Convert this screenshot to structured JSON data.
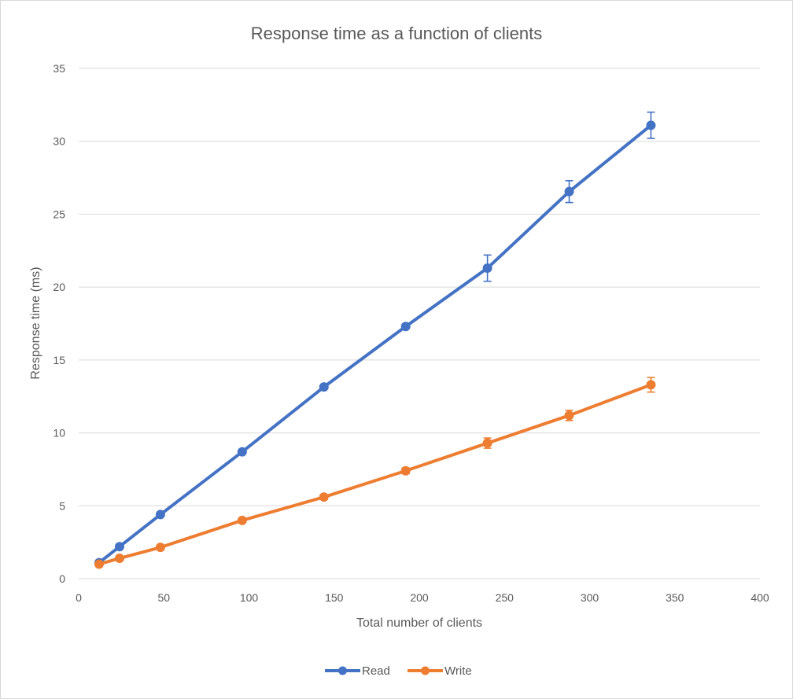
{
  "chart_data": {
    "type": "line",
    "title": "Response time as a function of clients",
    "xlabel": "Total number of clients",
    "ylabel": "Response time (ms)",
    "xlim": [
      0,
      400
    ],
    "ylim": [
      0,
      35
    ],
    "xticks": [
      0,
      50,
      100,
      150,
      200,
      250,
      300,
      350,
      400
    ],
    "yticks": [
      0,
      5,
      10,
      15,
      20,
      25,
      30,
      35
    ],
    "grid": "horizontal",
    "legend_position": "bottom",
    "series": [
      {
        "name": "Read",
        "color": "#4472c4",
        "points": [
          {
            "x": 12,
            "y": 1.1,
            "err": 0.1
          },
          {
            "x": 24,
            "y": 2.2,
            "err": 0.1
          },
          {
            "x": 48,
            "y": 4.4,
            "err": 0.1
          },
          {
            "x": 96,
            "y": 8.7,
            "err": 0.1
          },
          {
            "x": 144,
            "y": 13.15,
            "err": 0.1
          },
          {
            "x": 192,
            "y": 17.3,
            "err": 0.1
          },
          {
            "x": 240,
            "y": 21.3,
            "err": 0.9
          },
          {
            "x": 288,
            "y": 26.55,
            "err": 0.75
          },
          {
            "x": 336,
            "y": 31.1,
            "err": 0.9
          }
        ]
      },
      {
        "name": "Write",
        "color": "#ed7d31",
        "points": [
          {
            "x": 12,
            "y": 1.0,
            "err": 0.1
          },
          {
            "x": 24,
            "y": 1.4,
            "err": 0.1
          },
          {
            "x": 48,
            "y": 2.15,
            "err": 0.1
          },
          {
            "x": 96,
            "y": 4.0,
            "err": 0.1
          },
          {
            "x": 144,
            "y": 5.6,
            "err": 0.15
          },
          {
            "x": 192,
            "y": 7.4,
            "err": 0.2
          },
          {
            "x": 240,
            "y": 9.3,
            "err": 0.35
          },
          {
            "x": 288,
            "y": 11.2,
            "err": 0.35
          },
          {
            "x": 336,
            "y": 13.3,
            "err": 0.5
          }
        ]
      }
    ]
  }
}
